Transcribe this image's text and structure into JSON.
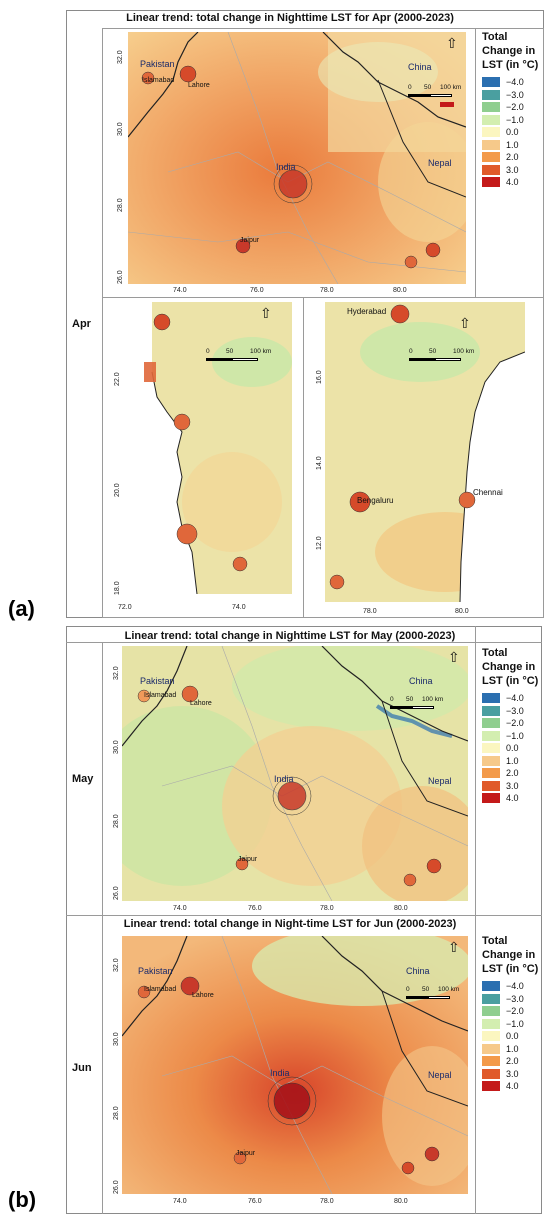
{
  "panel_a": {
    "label": "(a)",
    "title": "Linear trend: total change in Nighttime LST for Apr (2000-2023)",
    "row_label": "Apr",
    "main_map": {
      "countries": [
        "Pakistan",
        "China",
        "India",
        "Nepal"
      ],
      "cities": [
        "Islamabad",
        "Lahore",
        "Jaipur"
      ],
      "x_ticks": [
        "74.0",
        "76.0",
        "78.0",
        "80.0"
      ],
      "y_ticks": [
        "32.0",
        "30.0",
        "28.0",
        "26.0"
      ],
      "scale": [
        "0",
        "50",
        "100 km"
      ]
    },
    "left_map": {
      "x_ticks": [
        "72.0",
        "74.0"
      ],
      "y_ticks": [
        "22.0",
        "20.0",
        "18.0"
      ],
      "scale": [
        "0",
        "50",
        "100 km"
      ]
    },
    "right_map": {
      "cities": [
        "Hyderabad",
        "Bengaluru",
        "Chennai"
      ],
      "x_ticks": [
        "78.0",
        "80.0"
      ],
      "y_ticks": [
        "16.0",
        "14.0",
        "12.0"
      ],
      "scale": [
        "0",
        "50",
        "100 km"
      ]
    }
  },
  "panel_b": {
    "label": "(b)",
    "may": {
      "title": "Linear trend: total change in Nighttime LST for May (2000-2023)",
      "row_label": "May",
      "countries": [
        "Pakistan",
        "China",
        "India",
        "Nepal"
      ],
      "cities": [
        "Islamabad",
        "Lahore",
        "Jaipur"
      ],
      "x_ticks": [
        "74.0",
        "76.0",
        "78.0",
        "80.0"
      ],
      "y_ticks": [
        "32.0",
        "30.0",
        "28.0",
        "26.0"
      ],
      "scale": [
        "0",
        "50",
        "100 km"
      ]
    },
    "jun": {
      "title": "Linear trend: total change in Night-time LST for Jun (2000-2023)",
      "row_label": "Jun",
      "countries": [
        "Pakistan",
        "China",
        "India",
        "Nepal"
      ],
      "cities": [
        "Islamabad",
        "Lahore",
        "Jaipur"
      ],
      "x_ticks": [
        "74.0",
        "76.0",
        "78.0",
        "80.0"
      ],
      "y_ticks": [
        "32.0",
        "30.0",
        "28.0",
        "26.0"
      ],
      "scale": [
        "0",
        "50",
        "100 km"
      ]
    }
  },
  "legend": {
    "title_lines": [
      "Total",
      "Change in",
      "LST (in °C)"
    ],
    "entries": [
      {
        "label": "−4.0",
        "color": "#2b6fb0"
      },
      {
        "label": "−3.0",
        "color": "#4a9fa0"
      },
      {
        "label": "−2.0",
        "color": "#8fce8f"
      },
      {
        "label": "−1.0",
        "color": "#d3eeb0"
      },
      {
        "label": "0.0",
        "color": "#fbf6c0"
      },
      {
        "label": "1.0",
        "color": "#f6c98a"
      },
      {
        "label": "2.0",
        "color": "#f39a4a"
      },
      {
        "label": "3.0",
        "color": "#e05a2a"
      },
      {
        "label": "4.0",
        "color": "#c41a1a"
      }
    ]
  },
  "colors": {
    "apr_base": "#f3b87a",
    "may_base": "#e9e0a5",
    "jun_base": "#f0a96a",
    "south_base": "#e9e4a6",
    "border": "#222222",
    "state_line": "#9a9a9a",
    "hotspot": "#c8392a"
  }
}
